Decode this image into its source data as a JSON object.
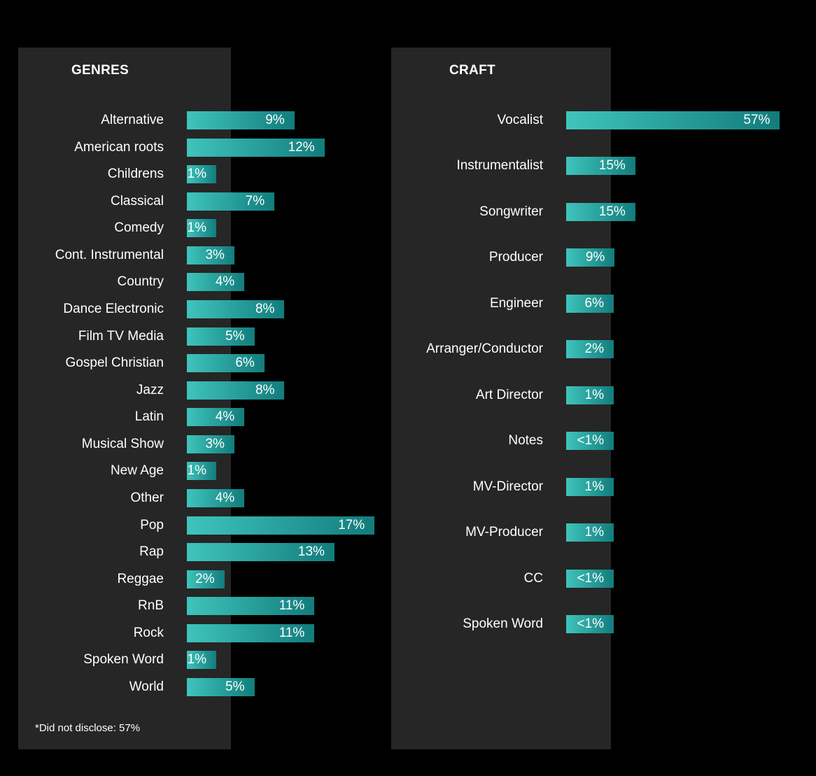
{
  "colors": {
    "background": "#000000",
    "panel": "#262626",
    "bar_light": "#3fc4bc",
    "bar_dark": "#127c7c",
    "text": "#ffffff"
  },
  "chart_data": [
    {
      "type": "bar",
      "orientation": "horizontal",
      "title": "GENRES",
      "categories": [
        "Alternative",
        "American roots",
        "Childrens",
        "Classical",
        "Comedy",
        "Cont. Instrumental",
        "Country",
        "Dance Electronic",
        "Film TV Media",
        "Gospel Christian",
        "Jazz",
        "Latin",
        "Musical Show",
        "New Age",
        "Other",
        "Pop",
        "Rap",
        "Reggae",
        "RnB",
        "Rock",
        "Spoken Word",
        "World"
      ],
      "values": [
        9,
        12,
        1,
        7,
        1,
        3,
        4,
        8,
        5,
        6,
        8,
        4,
        3,
        1,
        4,
        17,
        13,
        2,
        11,
        11,
        1,
        5
      ],
      "value_labels": [
        "9%",
        "12%",
        "1%",
        "7%",
        "1%",
        "3%",
        "4%",
        "8%",
        "5%",
        "6%",
        "8%",
        "4%",
        "3%",
        "1%",
        "4%",
        "17%",
        "13%",
        "2%",
        "11%",
        "11%",
        "1%",
        "5%"
      ],
      "unit": "%",
      "footnote": "*Did not disclose: 57%"
    },
    {
      "type": "bar",
      "orientation": "horizontal",
      "title": "CRAFT",
      "categories": [
        "Vocalist",
        "Instrumentalist",
        "Songwriter",
        "Producer",
        "Engineer",
        "Arranger/Conductor",
        "Art Director",
        "Notes",
        "MV-Director",
        "MV-Producer",
        "CC",
        "Spoken Word"
      ],
      "values": [
        57,
        15,
        15,
        9,
        6,
        2,
        1,
        0.5,
        1,
        1,
        0.5,
        0.5
      ],
      "value_labels": [
        "57%",
        "15%",
        "15%",
        "9%",
        "6%",
        "2%",
        "1%",
        "<1%",
        "1%",
        "1%",
        "<1%",
        "<1%"
      ],
      "unit": "%"
    }
  ]
}
